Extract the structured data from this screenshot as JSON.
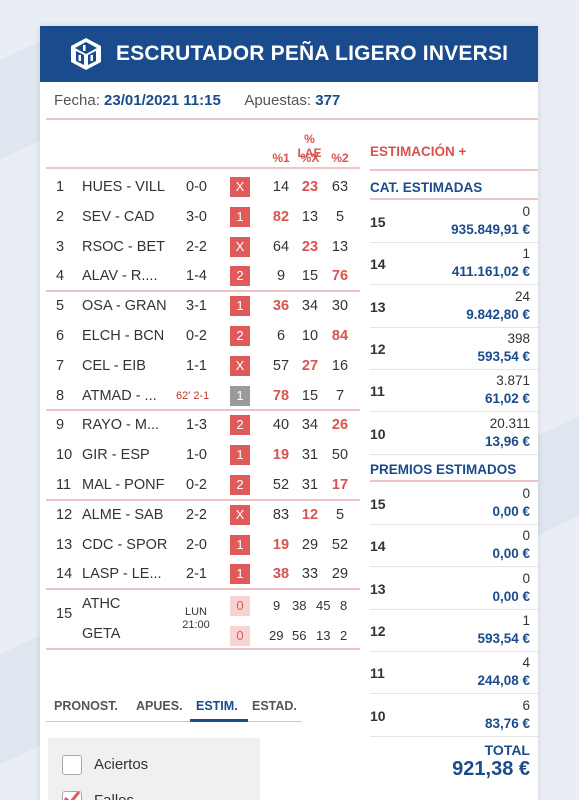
{
  "header": {
    "title": "ESCRUTADOR PEÑA LIGERO INVERSI"
  },
  "info": {
    "fecha_label": "Fecha:",
    "fecha_value": "23/01/2021 11:15",
    "apuestas_label": "Apuestas:",
    "apuestas_value": "377"
  },
  "lae": {
    "title": "% LAE",
    "col1": "%1",
    "colx": "%X",
    "col2": "%2"
  },
  "matches": [
    {
      "num": "1",
      "match": "HUES - VILL",
      "result": "0-0",
      "sign": "X",
      "p1": "14",
      "px": "23",
      "p2": "63"
    },
    {
      "num": "2",
      "match": "SEV - CAD",
      "result": "3-0",
      "sign": "1",
      "p1": "82",
      "px": "13",
      "p2": "5"
    },
    {
      "num": "3",
      "match": "RSOC - BET",
      "result": "2-2",
      "sign": "X",
      "p1": "64",
      "px": "23",
      "p2": "13"
    },
    {
      "num": "4",
      "match": "ALAV - R....",
      "result": "1-4",
      "sign": "2",
      "p1": "9",
      "px": "15",
      "p2": "76"
    },
    {
      "num": "5",
      "match": "OSA - GRAN",
      "result": "3-1",
      "sign": "1",
      "p1": "36",
      "px": "34",
      "p2": "30"
    },
    {
      "num": "6",
      "match": "ELCH - BCN",
      "result": "0-2",
      "sign": "2",
      "p1": "6",
      "px": "10",
      "p2": "84"
    },
    {
      "num": "7",
      "match": "CEL - EIB",
      "result": "1-1",
      "sign": "X",
      "p1": "57",
      "px": "27",
      "p2": "16"
    },
    {
      "num": "8",
      "match": "ATMAD - ...",
      "result": "62' 2-1",
      "sign": "1",
      "p1": "78",
      "px": "15",
      "p2": "7"
    },
    {
      "num": "9",
      "match": "RAYO - M...",
      "result": "1-3",
      "sign": "2",
      "p1": "40",
      "px": "34",
      "p2": "26"
    },
    {
      "num": "10",
      "match": "GIR - ESP",
      "result": "1-0",
      "sign": "1",
      "p1": "19",
      "px": "31",
      "p2": "50"
    },
    {
      "num": "11",
      "match": "MAL - PONF",
      "result": "0-2",
      "sign": "2",
      "p1": "52",
      "px": "31",
      "p2": "17"
    },
    {
      "num": "12",
      "match": "ALME - SAB",
      "result": "2-2",
      "sign": "X",
      "p1": "83",
      "px": "12",
      "p2": "5"
    },
    {
      "num": "13",
      "match": "CDC - SPOR",
      "result": "2-0",
      "sign": "1",
      "p1": "19",
      "px": "29",
      "p2": "52"
    },
    {
      "num": "14",
      "match": "LASP - LE...",
      "result": "2-1",
      "sign": "1",
      "p1": "38",
      "px": "33",
      "p2": "29"
    }
  ],
  "pleno": {
    "num": "15",
    "home": "ATHC",
    "away": "GETA",
    "day": "LUN",
    "time": "21:00",
    "home_sign": "0",
    "away_sign": "0",
    "home_pcts": [
      "9",
      "38",
      "45",
      "8"
    ],
    "away_pcts": [
      "29",
      "56",
      "13",
      "2"
    ]
  },
  "right": {
    "estimacion_title": "ESTIMACIÓN +",
    "cat_title": "CAT. ESTIMADAS",
    "cat_rows": [
      {
        "cat": "15",
        "count": "0",
        "amount": "935.849,91 €"
      },
      {
        "cat": "14",
        "count": "1",
        "amount": "411.161,02 €"
      },
      {
        "cat": "13",
        "count": "24",
        "amount": "9.842,80 €"
      },
      {
        "cat": "12",
        "count": "398",
        "amount": "593,54 €"
      },
      {
        "cat": "11",
        "count": "3.871",
        "amount": "61,02 €"
      },
      {
        "cat": "10",
        "count": "20.311",
        "amount": "13,96 €"
      }
    ],
    "premios_title": "PREMIOS ESTIMADOS",
    "premios_rows": [
      {
        "cat": "15",
        "count": "0",
        "amount": "0,00 €"
      },
      {
        "cat": "14",
        "count": "0",
        "amount": "0,00 €"
      },
      {
        "cat": "13",
        "count": "0",
        "amount": "0,00 €"
      },
      {
        "cat": "12",
        "count": "1",
        "amount": "593,54 €"
      },
      {
        "cat": "11",
        "count": "4",
        "amount": "244,08 €"
      },
      {
        "cat": "10",
        "count": "6",
        "amount": "83,76 €"
      }
    ],
    "total_label": "TOTAL",
    "total_value": "921,38 €"
  },
  "tabs": [
    "PRONOST.",
    "APUES.",
    "ESTIM.",
    "ESTAD."
  ],
  "options": {
    "aciertos": "Aciertos",
    "fallos": "Fallos"
  },
  "colors": {
    "header": "#1a4b8c",
    "accent_red": "#e05a5a",
    "highlight": "#d9534f"
  }
}
